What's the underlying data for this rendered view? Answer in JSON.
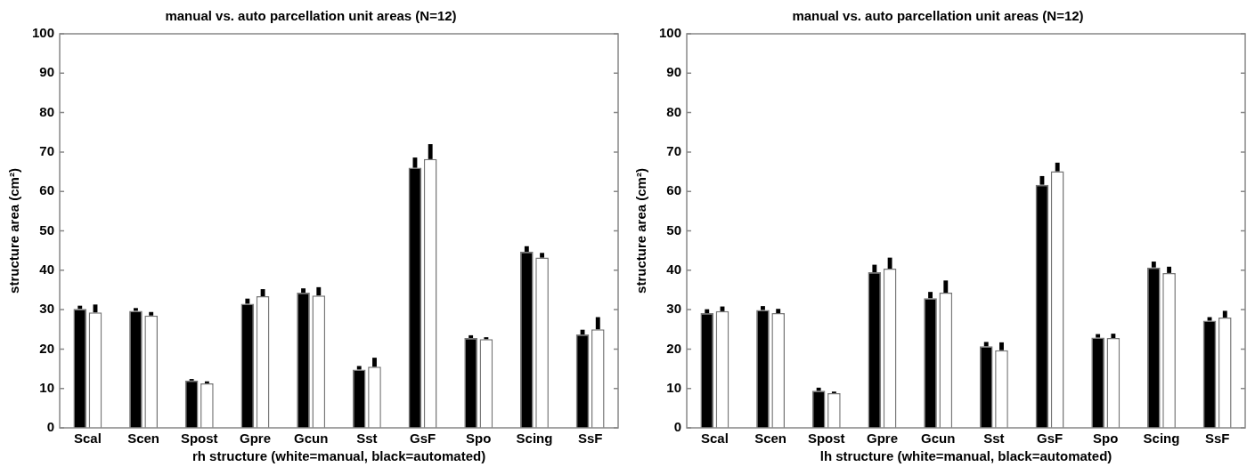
{
  "chart_data": [
    {
      "type": "bar",
      "title": "manual vs. auto parcellation unit areas (N=12)",
      "xlabel": "rh structure (white=manual, black=automated)",
      "ylabel": "structure area (cm²)",
      "categories": [
        "Scal",
        "Scen",
        "Spost",
        "Gpre",
        "Gcun",
        "Sst",
        "GsF",
        "Spo",
        "Scing",
        "SsF"
      ],
      "series": [
        {
          "color": "#000000",
          "values": [
            30.2,
            29.7,
            12.0,
            31.5,
            34.3,
            14.8,
            66.0,
            22.8,
            44.7,
            23.7
          ],
          "errors": [
            [
              30.2,
              31.0
            ],
            [
              29.7,
              30.4
            ],
            [
              12.0,
              12.4
            ],
            [
              31.5,
              32.8
            ],
            [
              34.3,
              35.4
            ],
            [
              14.8,
              15.7
            ],
            [
              66.0,
              68.6
            ],
            [
              22.8,
              23.5
            ],
            [
              44.7,
              46.1
            ],
            [
              23.7,
              24.9
            ]
          ]
        },
        {
          "color": "#ffffff",
          "values": [
            29.3,
            28.5,
            11.3,
            33.4,
            33.6,
            15.5,
            68.2,
            22.5,
            43.2,
            25.0
          ],
          "errors": [
            [
              29.3,
              31.3
            ],
            [
              28.5,
              29.4
            ],
            [
              11.3,
              11.8
            ],
            [
              33.4,
              35.2
            ],
            [
              33.6,
              35.7
            ],
            [
              15.5,
              17.8
            ],
            [
              68.2,
              72.0
            ],
            [
              22.5,
              23.0
            ],
            [
              43.2,
              44.4
            ],
            [
              25.0,
              28.1
            ]
          ]
        }
      ],
      "ylim": [
        0,
        100
      ],
      "yticks": [
        0,
        10,
        20,
        30,
        40,
        50,
        60,
        70,
        80,
        90,
        100
      ],
      "grid": false,
      "legend": false
    },
    {
      "type": "bar",
      "title": "manual vs. auto parcellation unit areas (N=12)",
      "xlabel": "lh structure (white=manual, black=automated)",
      "ylabel": "structure area (cm²)",
      "categories": [
        "Scal",
        "Scen",
        "Spost",
        "Gpre",
        "Gcun",
        "Sst",
        "GsF",
        "Spo",
        "Scing",
        "SsF"
      ],
      "series": [
        {
          "color": "#000000",
          "values": [
            29.1,
            29.9,
            9.4,
            39.5,
            32.9,
            20.7,
            61.7,
            22.9,
            40.7,
            27.2
          ],
          "errors": [
            [
              29.1,
              30.1
            ],
            [
              29.9,
              30.9
            ],
            [
              9.4,
              10.2
            ],
            [
              39.5,
              41.4
            ],
            [
              32.9,
              34.5
            ],
            [
              20.7,
              21.8
            ],
            [
              61.7,
              63.9
            ],
            [
              22.9,
              23.8
            ],
            [
              40.7,
              42.2
            ],
            [
              27.2,
              28.1
            ]
          ]
        },
        {
          "color": "#ffffff",
          "values": [
            29.6,
            29.1,
            8.8,
            40.4,
            34.3,
            19.7,
            65.1,
            22.8,
            39.3,
            28.0
          ],
          "errors": [
            [
              29.6,
              30.8
            ],
            [
              29.1,
              30.2
            ],
            [
              8.8,
              9.2
            ],
            [
              40.4,
              43.2
            ],
            [
              34.3,
              37.4
            ],
            [
              19.7,
              21.7
            ],
            [
              65.1,
              67.3
            ],
            [
              22.8,
              23.9
            ],
            [
              39.3,
              40.9
            ],
            [
              28.0,
              29.7
            ]
          ]
        }
      ],
      "ylim": [
        0,
        100
      ],
      "yticks": [
        0,
        10,
        20,
        30,
        40,
        50,
        60,
        70,
        80,
        90,
        100
      ],
      "grid": false,
      "legend": false
    }
  ]
}
